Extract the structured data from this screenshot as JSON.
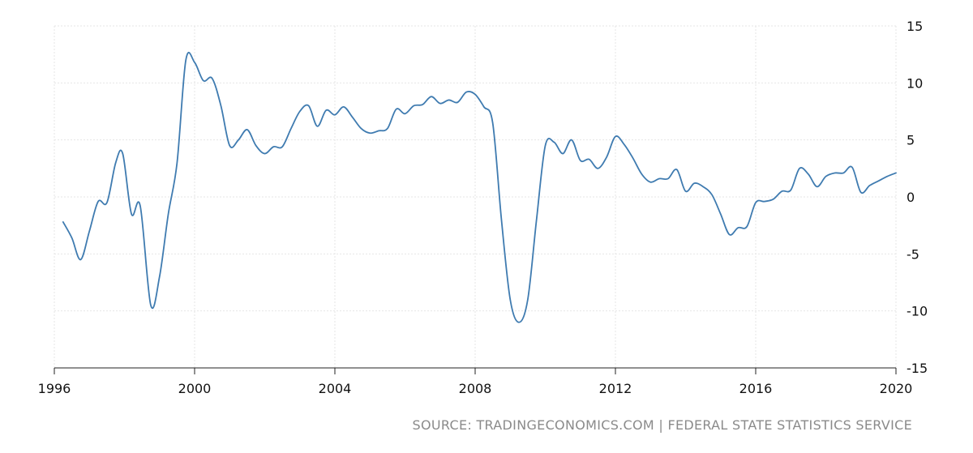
{
  "chart_data": {
    "type": "line",
    "title": "",
    "xlabel": "",
    "ylabel": "",
    "xlim": [
      1996.0,
      2020.0
    ],
    "ylim": [
      -15,
      15
    ],
    "x_ticks": [
      "1996",
      "2000",
      "2004",
      "2008",
      "2012",
      "2016",
      "2020"
    ],
    "y_ticks": [
      "15",
      "10",
      "5",
      "0",
      "-5",
      "-10",
      "-15"
    ],
    "y_axis_side": "right",
    "grid": true,
    "legend": "none",
    "line_color": "#3f7bb0",
    "series": [
      {
        "name": "",
        "points": [
          [
            1996.25,
            -2.2
          ],
          [
            1996.5,
            -3.6
          ],
          [
            1996.75,
            -5.5
          ],
          [
            1997.0,
            -3.0
          ],
          [
            1997.25,
            -0.4
          ],
          [
            1997.5,
            -0.5
          ],
          [
            1997.75,
            3.0
          ],
          [
            1997.95,
            3.8
          ],
          [
            1998.2,
            -1.5
          ],
          [
            1998.45,
            -0.8
          ],
          [
            1998.75,
            -9.5
          ],
          [
            1999.0,
            -7.0
          ],
          [
            1999.25,
            -1.5
          ],
          [
            1999.5,
            3.0
          ],
          [
            1999.75,
            12.0
          ],
          [
            2000.0,
            11.8
          ],
          [
            2000.25,
            10.2
          ],
          [
            2000.5,
            10.4
          ],
          [
            2000.75,
            8.0
          ],
          [
            2001.0,
            4.5
          ],
          [
            2001.25,
            5.0
          ],
          [
            2001.5,
            5.9
          ],
          [
            2001.75,
            4.5
          ],
          [
            2002.0,
            3.8
          ],
          [
            2002.25,
            4.4
          ],
          [
            2002.5,
            4.4
          ],
          [
            2002.75,
            6.0
          ],
          [
            2003.0,
            7.5
          ],
          [
            2003.25,
            8.0
          ],
          [
            2003.5,
            6.2
          ],
          [
            2003.75,
            7.6
          ],
          [
            2004.0,
            7.2
          ],
          [
            2004.25,
            7.9
          ],
          [
            2004.5,
            7.0
          ],
          [
            2004.75,
            6.0
          ],
          [
            2005.0,
            5.6
          ],
          [
            2005.25,
            5.8
          ],
          [
            2005.5,
            6.0
          ],
          [
            2005.75,
            7.7
          ],
          [
            2006.0,
            7.3
          ],
          [
            2006.25,
            8.0
          ],
          [
            2006.5,
            8.1
          ],
          [
            2006.75,
            8.8
          ],
          [
            2007.0,
            8.2
          ],
          [
            2007.25,
            8.5
          ],
          [
            2007.5,
            8.3
          ],
          [
            2007.75,
            9.2
          ],
          [
            2008.0,
            9.0
          ],
          [
            2008.25,
            7.9
          ],
          [
            2008.5,
            6.5
          ],
          [
            2008.75,
            -2.0
          ],
          [
            2009.0,
            -9.0
          ],
          [
            2009.25,
            -11.0
          ],
          [
            2009.5,
            -9.0
          ],
          [
            2009.75,
            -2.0
          ],
          [
            2010.0,
            4.5
          ],
          [
            2010.25,
            4.8
          ],
          [
            2010.5,
            3.8
          ],
          [
            2010.75,
            5.0
          ],
          [
            2011.0,
            3.2
          ],
          [
            2011.25,
            3.3
          ],
          [
            2011.5,
            2.5
          ],
          [
            2011.75,
            3.5
          ],
          [
            2012.0,
            5.3
          ],
          [
            2012.25,
            4.6
          ],
          [
            2012.5,
            3.4
          ],
          [
            2012.75,
            2.0
          ],
          [
            2013.0,
            1.3
          ],
          [
            2013.25,
            1.6
          ],
          [
            2013.5,
            1.6
          ],
          [
            2013.75,
            2.4
          ],
          [
            2014.0,
            0.5
          ],
          [
            2014.25,
            1.2
          ],
          [
            2014.5,
            0.9
          ],
          [
            2014.75,
            0.2
          ],
          [
            2015.0,
            -1.5
          ],
          [
            2015.25,
            -3.3
          ],
          [
            2015.5,
            -2.7
          ],
          [
            2015.75,
            -2.6
          ],
          [
            2016.0,
            -0.5
          ],
          [
            2016.25,
            -0.4
          ],
          [
            2016.5,
            -0.2
          ],
          [
            2016.75,
            0.5
          ],
          [
            2017.0,
            0.6
          ],
          [
            2017.25,
            2.5
          ],
          [
            2017.5,
            2.0
          ],
          [
            2017.75,
            0.9
          ],
          [
            2018.0,
            1.8
          ],
          [
            2018.25,
            2.1
          ],
          [
            2018.5,
            2.1
          ],
          [
            2018.75,
            2.6
          ],
          [
            2019.0,
            0.4
          ],
          [
            2019.25,
            1.0
          ],
          [
            2019.5,
            1.4
          ],
          [
            2019.75,
            1.8
          ],
          [
            2020.0,
            2.1
          ]
        ]
      }
    ]
  },
  "footer": {
    "source": "SOURCE: TRADINGECONOMICS.COM | FEDERAL STATE STATISTICS SERVICE"
  }
}
